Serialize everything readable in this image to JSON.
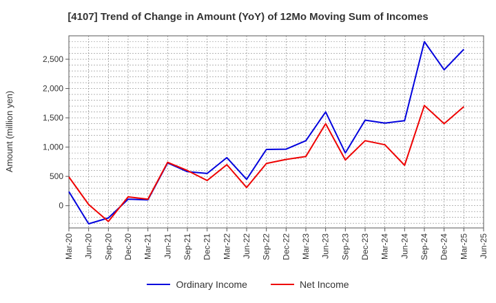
{
  "chart_data": {
    "type": "line",
    "title": "[4107]  Trend of Change in Amount (YoY) of 12Mo Moving Sum of Incomes",
    "xlabel": "",
    "ylabel": "Amount (million yen)",
    "categories": [
      "Mar-20",
      "Jun-20",
      "Sep-20",
      "Dec-20",
      "Mar-21",
      "Jun-21",
      "Sep-21",
      "Dec-21",
      "Mar-22",
      "Jun-22",
      "Sep-22",
      "Dec-22",
      "Mar-23",
      "Jun-23",
      "Sep-23",
      "Dec-23",
      "Mar-24",
      "Jun-24",
      "Sep-24",
      "Dec-24",
      "Mar-25",
      "Jun-25"
    ],
    "yticks": [
      0,
      500,
      1000,
      1500,
      2000,
      2500
    ],
    "ytick_labels": [
      "0",
      "500",
      "1,000",
      "1,500",
      "2,000",
      "2,500"
    ],
    "ylim": [
      -380,
      2900
    ],
    "grid": true,
    "legend_position": "bottom",
    "series": [
      {
        "name": "Ordinary Income",
        "color": "#0000dd",
        "values": [
          240,
          -310,
          -210,
          110,
          100,
          730,
          580,
          550,
          820,
          450,
          960,
          965,
          1110,
          1600,
          900,
          1460,
          1410,
          1450,
          2800,
          2320,
          2670,
          null
        ]
      },
      {
        "name": "Net Income",
        "color": "#ee0000",
        "values": [
          490,
          20,
          -270,
          150,
          110,
          740,
          600,
          430,
          700,
          310,
          720,
          790,
          840,
          1400,
          780,
          1110,
          1040,
          690,
          1710,
          1400,
          1690,
          null
        ]
      }
    ]
  }
}
